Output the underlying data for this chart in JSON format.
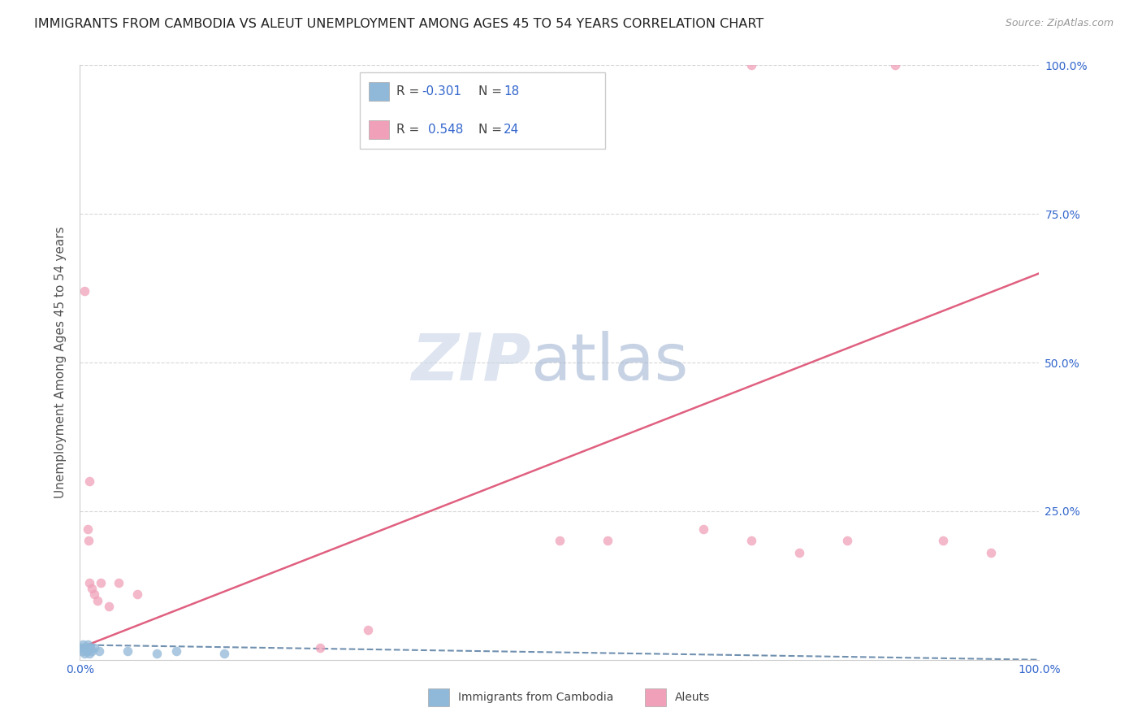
{
  "title": "IMMIGRANTS FROM CAMBODIA VS ALEUT UNEMPLOYMENT AMONG AGES 45 TO 54 YEARS CORRELATION CHART",
  "source": "Source: ZipAtlas.com",
  "ylabel": "Unemployment Among Ages 45 to 54 years",
  "xlim": [
    0,
    1.0
  ],
  "ylim": [
    0,
    1.0
  ],
  "background_color": "#ffffff",
  "cambodia_points": [
    [
      0.001,
      0.02
    ],
    [
      0.002,
      0.015
    ],
    [
      0.003,
      0.025
    ],
    [
      0.004,
      0.02
    ],
    [
      0.005,
      0.01
    ],
    [
      0.006,
      0.02
    ],
    [
      0.007,
      0.015
    ],
    [
      0.008,
      0.025
    ],
    [
      0.009,
      0.02
    ],
    [
      0.01,
      0.01
    ],
    [
      0.011,
      0.02
    ],
    [
      0.012,
      0.015
    ],
    [
      0.015,
      0.02
    ],
    [
      0.02,
      0.015
    ],
    [
      0.05,
      0.015
    ],
    [
      0.08,
      0.01
    ],
    [
      0.1,
      0.015
    ],
    [
      0.15,
      0.01
    ]
  ],
  "aleut_points": [
    [
      0.005,
      0.62
    ],
    [
      0.01,
      0.3
    ],
    [
      0.008,
      0.22
    ],
    [
      0.009,
      0.2
    ],
    [
      0.01,
      0.13
    ],
    [
      0.012,
      0.12
    ],
    [
      0.015,
      0.11
    ],
    [
      0.018,
      0.1
    ],
    [
      0.022,
      0.13
    ],
    [
      0.03,
      0.09
    ],
    [
      0.04,
      0.13
    ],
    [
      0.06,
      0.11
    ],
    [
      0.25,
      0.02
    ],
    [
      0.3,
      0.05
    ],
    [
      0.5,
      0.2
    ],
    [
      0.55,
      0.2
    ],
    [
      0.65,
      0.22
    ],
    [
      0.7,
      1.0
    ],
    [
      0.85,
      1.0
    ],
    [
      0.7,
      0.2
    ],
    [
      0.75,
      0.18
    ],
    [
      0.8,
      0.2
    ],
    [
      0.9,
      0.2
    ],
    [
      0.95,
      0.18
    ]
  ],
  "cambodia_line_x": [
    0.0,
    1.0
  ],
  "cambodia_line_y": [
    0.025,
    0.0
  ],
  "aleut_line_x": [
    0.0,
    1.0
  ],
  "aleut_line_y": [
    0.02,
    0.65
  ],
  "grid_color": "#d8d8d8",
  "cambodia_color": "#90b8d8",
  "aleut_color": "#f0a0b8",
  "cambodia_line_color": "#7090b0",
  "aleut_line_color": "#e06080",
  "title_fontsize": 11.5,
  "axis_label_fontsize": 11,
  "tick_fontsize": 10,
  "marker_size": 70,
  "ytick_positions": [
    0.25,
    0.5,
    0.75,
    1.0
  ],
  "ytick_labels": [
    "25.0%",
    "50.0%",
    "75.0%",
    "100.0%"
  ],
  "xtick_positions": [
    0.0,
    1.0
  ],
  "xtick_labels": [
    "0.0%",
    "100.0%"
  ]
}
